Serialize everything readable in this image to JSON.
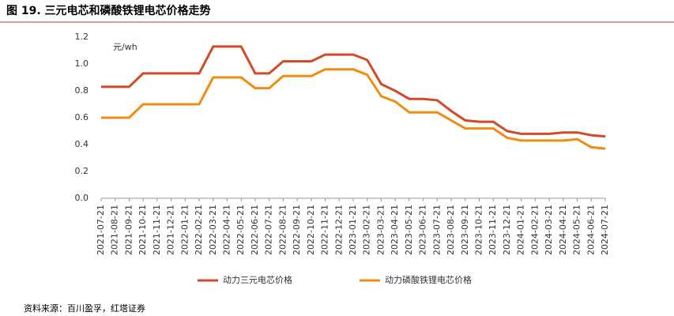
{
  "title": "图 19. 三元电芯和磷酸铁锂电芯价格走势",
  "source": "资料来源：百川盈孚，红塔证券",
  "chart_data": {
    "type": "line",
    "y_label": "元/wh",
    "categories": [
      "2021-07-21",
      "2021-08-21",
      "2021-09-21",
      "2021-10-21",
      "2021-11-21",
      "2021-12-21",
      "2022-01-21",
      "2022-02-21",
      "2022-03-21",
      "2022-04-21",
      "2022-05-21",
      "2022-06-21",
      "2022-07-21",
      "2022-08-21",
      "2022-09-21",
      "2022-10-21",
      "2022-11-21",
      "2022-12-21",
      "2023-01-21",
      "2023-02-21",
      "2023-03-21",
      "2023-04-21",
      "2023-05-21",
      "2023-06-21",
      "2023-07-21",
      "2023-08-21",
      "2023-09-21",
      "2023-10-21",
      "2023-11-21",
      "2023-12-21",
      "2024-01-21",
      "2024-02-21",
      "2024-03-21",
      "2024-04-21",
      "2024-05-21",
      "2024-06-21",
      "2024-07-21"
    ],
    "series": [
      {
        "name": "动力三元电芯价格",
        "color": "#d24a28",
        "values": [
          0.83,
          0.83,
          0.83,
          0.93,
          0.93,
          0.93,
          0.93,
          0.93,
          1.13,
          1.13,
          1.13,
          0.93,
          0.93,
          1.02,
          1.02,
          1.02,
          1.07,
          1.07,
          1.07,
          1.03,
          0.85,
          0.8,
          0.74,
          0.74,
          0.73,
          0.65,
          0.58,
          0.57,
          0.57,
          0.5,
          0.48,
          0.48,
          0.48,
          0.49,
          0.49,
          0.47,
          0.46
        ]
      },
      {
        "name": "动力磷酸铁锂电芯价格",
        "color": "#f08c10",
        "values": [
          0.6,
          0.6,
          0.6,
          0.7,
          0.7,
          0.7,
          0.7,
          0.7,
          0.9,
          0.9,
          0.9,
          0.82,
          0.82,
          0.91,
          0.91,
          0.91,
          0.96,
          0.96,
          0.96,
          0.92,
          0.76,
          0.72,
          0.64,
          0.64,
          0.64,
          0.58,
          0.52,
          0.52,
          0.52,
          0.45,
          0.43,
          0.43,
          0.43,
          0.43,
          0.44,
          0.38,
          0.37
        ]
      }
    ],
    "ylim": [
      0,
      1.2
    ],
    "yticks": [
      {
        "value": 0,
        "label": "0.0"
      },
      0.2,
      0.4,
      0.6,
      0.8,
      {
        "value": 1,
        "label": "1.0"
      },
      1.2
    ],
    "legend": "bottom"
  }
}
